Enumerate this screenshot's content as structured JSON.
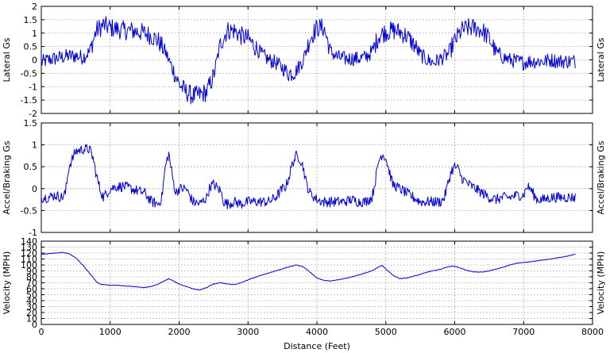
{
  "chart_data": [
    {
      "type": "line",
      "title": "",
      "xlabel": "",
      "ylabel": "Lateral Gs",
      "ylabel_right": "Lateral Gs",
      "xlim": [
        0,
        8000
      ],
      "ylim": [
        -2,
        2
      ],
      "x_ticks": [
        0,
        1000,
        2000,
        3000,
        4000,
        5000,
        6000,
        7000,
        8000
      ],
      "y_ticks": [
        -2,
        -1.5,
        -1,
        -0.5,
        0,
        0.5,
        1,
        1.5,
        2
      ],
      "x_tick_labels_shown": false,
      "grid": true,
      "legend": "none",
      "color": "#0000d8",
      "series": [
        {
          "x": [
            0,
            100,
            200,
            300,
            400,
            500,
            600,
            700,
            800,
            900,
            1000,
            1100,
            1200,
            1300,
            1400,
            1500,
            1600,
            1700,
            1800,
            1900,
            2000,
            2100,
            2200,
            2300,
            2400,
            2500,
            2600,
            2700,
            2800,
            2900,
            3000,
            3100,
            3200,
            3300,
            3400,
            3500,
            3600,
            3700,
            3800,
            3900,
            4000,
            4100,
            4200,
            4300,
            4400,
            4500,
            4600,
            4700,
            4800,
            4900,
            5000,
            5100,
            5200,
            5300,
            5400,
            5500,
            5600,
            5700,
            5800,
            5900,
            6000,
            6100,
            6200,
            6300,
            6400,
            6500,
            6600,
            6700,
            6800,
            6900,
            7000,
            7100,
            7200,
            7300,
            7400,
            7500,
            7600,
            7700,
            7750
          ],
          "values": [
            -0.1,
            0.0,
            0.05,
            0.1,
            0.15,
            0.15,
            0.1,
            0.3,
            1.1,
            1.3,
            1.2,
            1.15,
            1.1,
            1.1,
            1.05,
            1.0,
            0.9,
            0.7,
            0.3,
            -0.3,
            -0.9,
            -1.2,
            -1.35,
            -1.3,
            -1.2,
            -0.6,
            0.6,
            1.1,
            1.1,
            0.9,
            0.8,
            0.5,
            0.2,
            0.0,
            -0.1,
            -0.3,
            -0.5,
            -0.4,
            0.0,
            0.8,
            1.2,
            1.2,
            0.3,
            0.1,
            0.05,
            0.05,
            0.05,
            0.1,
            0.3,
            0.9,
            1.05,
            1.1,
            1.05,
            0.9,
            0.6,
            0.2,
            0.0,
            -0.1,
            0.05,
            0.2,
            0.7,
            1.1,
            1.2,
            1.2,
            1.1,
            0.8,
            0.3,
            0.1,
            0.0,
            -0.05,
            -0.1,
            -0.05,
            -0.05,
            -0.05,
            0.0,
            -0.05,
            -0.05,
            -0.05,
            -0.05
          ],
          "noise": 0.28
        }
      ]
    },
    {
      "type": "line",
      "title": "",
      "xlabel": "",
      "ylabel": "Accel/Braking Gs",
      "ylabel_right": "Accel/Braking Gs",
      "xlim": [
        0,
        8000
      ],
      "ylim": [
        -1,
        1.5
      ],
      "x_ticks": [
        0,
        1000,
        2000,
        3000,
        4000,
        5000,
        6000,
        7000,
        8000
      ],
      "y_ticks": [
        -1,
        -0.5,
        0,
        0.5,
        1,
        1.5
      ],
      "x_tick_labels_shown": false,
      "grid": true,
      "legend": "none",
      "color": "#0000d8",
      "series": [
        {
          "x": [
            0,
            100,
            200,
            300,
            350,
            400,
            500,
            600,
            700,
            750,
            800,
            850,
            900,
            1000,
            1100,
            1200,
            1300,
            1400,
            1500,
            1600,
            1700,
            1750,
            1800,
            1850,
            1900,
            1950,
            2000,
            2100,
            2200,
            2300,
            2400,
            2450,
            2500,
            2600,
            2650,
            2700,
            2800,
            2900,
            3000,
            3100,
            3200,
            3300,
            3400,
            3500,
            3550,
            3600,
            3650,
            3700,
            3750,
            3800,
            3850,
            3900,
            4000,
            4100,
            4200,
            4300,
            4400,
            4500,
            4600,
            4700,
            4800,
            4850,
            4900,
            4950,
            5000,
            5050,
            5100,
            5200,
            5300,
            5400,
            5500,
            5600,
            5700,
            5800,
            5850,
            5900,
            5950,
            6000,
            6050,
            6100,
            6200,
            6300,
            6400,
            6500,
            6600,
            6700,
            6800,
            6900,
            7000,
            7050,
            7100,
            7150,
            7200,
            7300,
            7400,
            7500,
            7600,
            7700,
            7750
          ],
          "values": [
            -0.2,
            -0.2,
            -0.15,
            -0.2,
            -0.1,
            0.5,
            0.85,
            0.9,
            0.9,
            0.7,
            0.3,
            0.0,
            -0.2,
            0.0,
            0.05,
            0.05,
            0.0,
            -0.05,
            -0.1,
            -0.3,
            -0.35,
            -0.2,
            0.5,
            0.8,
            0.3,
            -0.1,
            0.0,
            0.0,
            -0.3,
            -0.35,
            -0.2,
            0.05,
            0.1,
            -0.05,
            -0.3,
            -0.35,
            -0.3,
            -0.35,
            -0.3,
            -0.3,
            -0.3,
            -0.3,
            -0.2,
            0.0,
            0.05,
            0.3,
            0.6,
            0.75,
            0.7,
            0.5,
            0.1,
            -0.1,
            -0.25,
            -0.3,
            -0.3,
            -0.3,
            -0.3,
            -0.25,
            -0.3,
            -0.3,
            -0.2,
            0.2,
            0.65,
            0.8,
            0.7,
            0.4,
            0.1,
            0.0,
            -0.1,
            -0.2,
            -0.3,
            -0.3,
            -0.3,
            -0.3,
            -0.2,
            0.1,
            0.4,
            0.5,
            0.45,
            0.25,
            0.1,
            0.0,
            -0.1,
            -0.2,
            -0.25,
            -0.2,
            -0.2,
            -0.15,
            -0.15,
            0.05,
            0.0,
            -0.15,
            -0.25,
            -0.25,
            -0.2,
            -0.2,
            -0.2,
            -0.2,
            -0.2
          ],
          "noise": 0.12
        }
      ]
    },
    {
      "type": "line",
      "title": "",
      "xlabel": "Distance (Feet)",
      "ylabel": "Velocity (MPH)",
      "ylabel_right": "Velocity (MPH)",
      "xlim": [
        0,
        8000
      ],
      "ylim": [
        0,
        140
      ],
      "x_ticks": [
        0,
        1000,
        2000,
        3000,
        4000,
        5000,
        6000,
        7000,
        8000
      ],
      "y_ticks": [
        0,
        10,
        20,
        30,
        40,
        50,
        60,
        70,
        80,
        90,
        100,
        110,
        120,
        130,
        140
      ],
      "x_tick_labels_shown": true,
      "grid": true,
      "legend": "none",
      "color": "#0000d8",
      "series": [
        {
          "x": [
            0,
            100,
            200,
            300,
            400,
            500,
            600,
            700,
            800,
            850,
            900,
            1000,
            1100,
            1200,
            1300,
            1400,
            1500,
            1600,
            1700,
            1800,
            1850,
            1900,
            2000,
            2100,
            2200,
            2300,
            2400,
            2500,
            2600,
            2700,
            2800,
            2900,
            3000,
            3200,
            3400,
            3600,
            3700,
            3800,
            3900,
            4000,
            4100,
            4200,
            4300,
            4400,
            4600,
            4800,
            4900,
            4950,
            5000,
            5100,
            5200,
            5300,
            5400,
            5500,
            5600,
            5800,
            5900,
            6000,
            6100,
            6200,
            6300,
            6400,
            6500,
            6600,
            6700,
            6800,
            6900,
            7000,
            7200,
            7400,
            7600,
            7750
          ],
          "values": [
            118,
            119,
            120,
            121,
            119,
            112,
            100,
            86,
            72,
            68,
            67,
            66,
            66,
            65,
            64,
            63,
            62,
            64,
            68,
            74,
            77,
            74,
            68,
            64,
            60,
            58,
            62,
            68,
            70,
            68,
            67,
            70,
            75,
            83,
            90,
            97,
            100,
            97,
            88,
            78,
            74,
            73,
            75,
            77,
            83,
            90,
            97,
            99,
            93,
            83,
            77,
            78,
            81,
            84,
            88,
            93,
            97,
            98,
            94,
            90,
            88,
            88,
            90,
            93,
            96,
            100,
            103,
            104,
            107,
            110,
            114,
            118
          ],
          "noise": 0.4
        }
      ]
    }
  ]
}
